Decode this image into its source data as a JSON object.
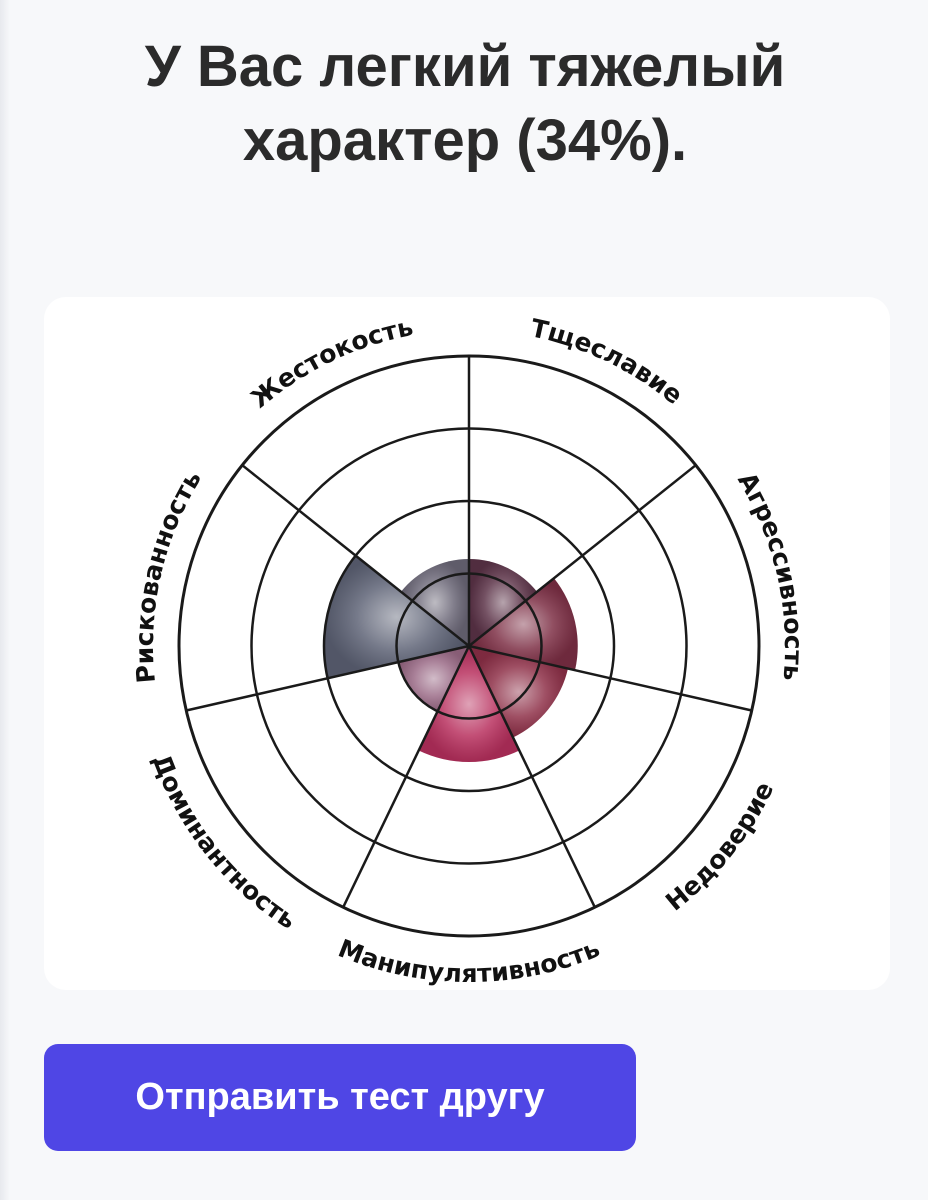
{
  "result": {
    "title_line1": "У Вас легкий тяжелый",
    "title_line2": "характер (34%)."
  },
  "chart_data": {
    "type": "radial",
    "rings": 4,
    "categories": [
      "Тщеславие",
      "Агрессивность",
      "Недоверие",
      "Манипулятивность",
      "Доминантность",
      "Рискованность",
      "Жестокость"
    ],
    "values": [
      1.2,
      1.5,
      1.4,
      1.6,
      1.0,
      2.0,
      1.2
    ],
    "max": 4,
    "colors": [
      "#5c3348",
      "#7d2f45",
      "#8e3048",
      "#b8305e",
      "#9a6a86",
      "#5d6275",
      "#6c6878"
    ]
  },
  "actions": {
    "share_label": "Отправить тест другу"
  },
  "colors": {
    "accent": "#4f46e5",
    "background": "#f7f8fa"
  }
}
